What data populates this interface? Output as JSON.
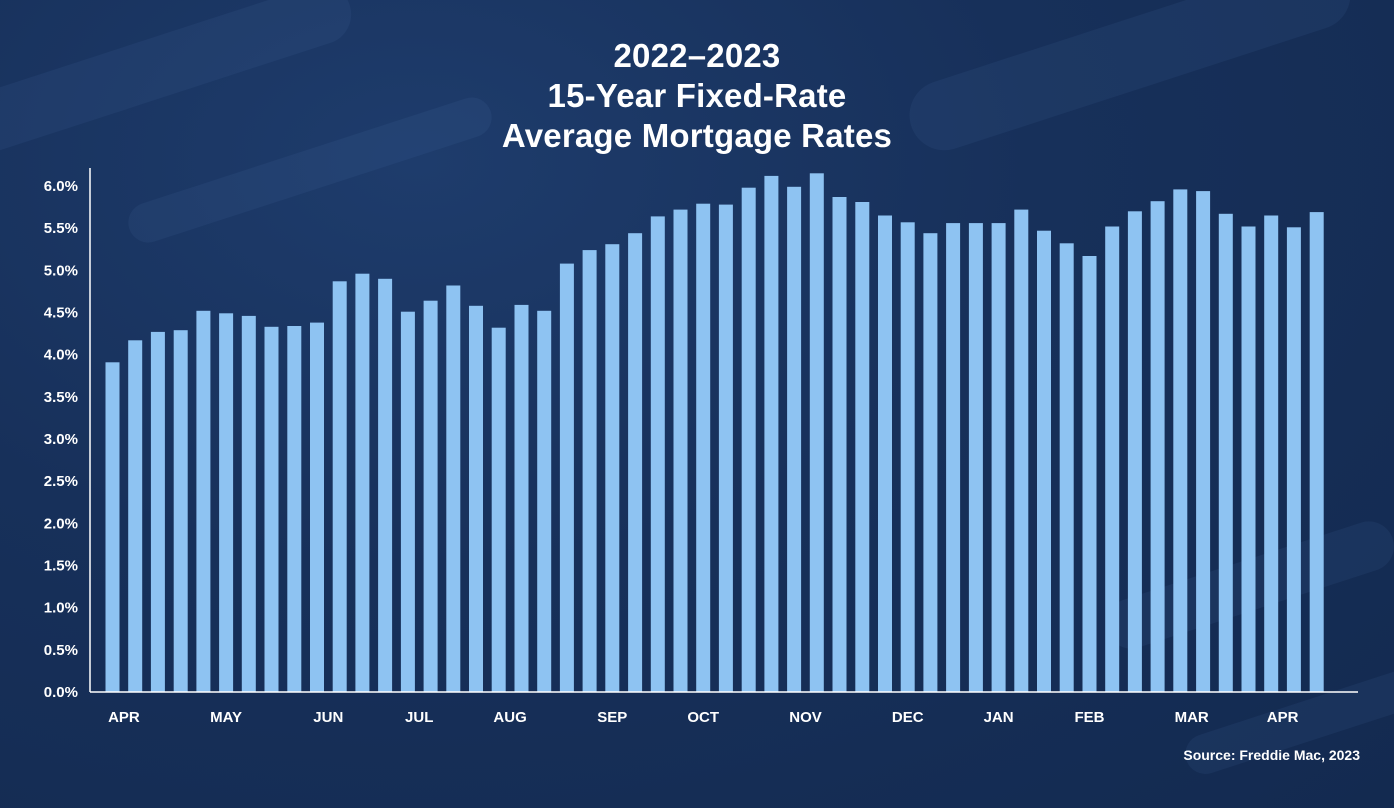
{
  "title": {
    "line1": "2022–2023",
    "line2": "15-Year Fixed-Rate",
    "line3": "Average Mortgage Rates"
  },
  "source": "Source: Freddie Mac, 2023",
  "colors": {
    "background": "#17305a",
    "bar": "#8ec3f2",
    "text": "#ffffff"
  },
  "chart_data": {
    "type": "bar",
    "title": "2022–2023 15-Year Fixed-Rate Average Mortgage Rates",
    "xlabel": "",
    "ylabel": "",
    "ylim": [
      0,
      6.0
    ],
    "grid": false,
    "y_ticks": [
      "0.0%",
      "0.5%",
      "1.0%",
      "1.5%",
      "2.0%",
      "2.5%",
      "3.0%",
      "3.5%",
      "4.0%",
      "4.5%",
      "5.0%",
      "5.5%",
      "6.0%"
    ],
    "month_labels": [
      {
        "label": "APR",
        "bar_index": 0.5
      },
      {
        "label": "MAY",
        "bar_index": 5
      },
      {
        "label": "JUN",
        "bar_index": 9.5
      },
      {
        "label": "JUL",
        "bar_index": 13.5
      },
      {
        "label": "AUG",
        "bar_index": 17.5
      },
      {
        "label": "SEP",
        "bar_index": 22
      },
      {
        "label": "OCT",
        "bar_index": 26
      },
      {
        "label": "NOV",
        "bar_index": 30.5
      },
      {
        "label": "DEC",
        "bar_index": 35
      },
      {
        "label": "JAN",
        "bar_index": 39
      },
      {
        "label": "FEB",
        "bar_index": 43
      },
      {
        "label": "MAR",
        "bar_index": 47.5
      },
      {
        "label": "APR",
        "bar_index": 51.5
      }
    ],
    "values": [
      3.91,
      4.17,
      4.27,
      4.29,
      4.52,
      4.49,
      4.46,
      4.33,
      4.34,
      4.38,
      4.87,
      4.96,
      4.9,
      4.51,
      4.64,
      4.82,
      4.58,
      4.32,
      4.59,
      4.52,
      5.08,
      5.24,
      5.31,
      5.44,
      5.64,
      5.72,
      5.79,
      5.78,
      5.98,
      6.12,
      5.99,
      6.15,
      5.87,
      5.81,
      5.65,
      5.57,
      5.44,
      5.56,
      5.56,
      5.56,
      5.72,
      5.47,
      5.32,
      5.17,
      5.52,
      5.7,
      5.82,
      5.96,
      5.94,
      5.67,
      5.52,
      5.65,
      5.51,
      5.69
    ]
  }
}
